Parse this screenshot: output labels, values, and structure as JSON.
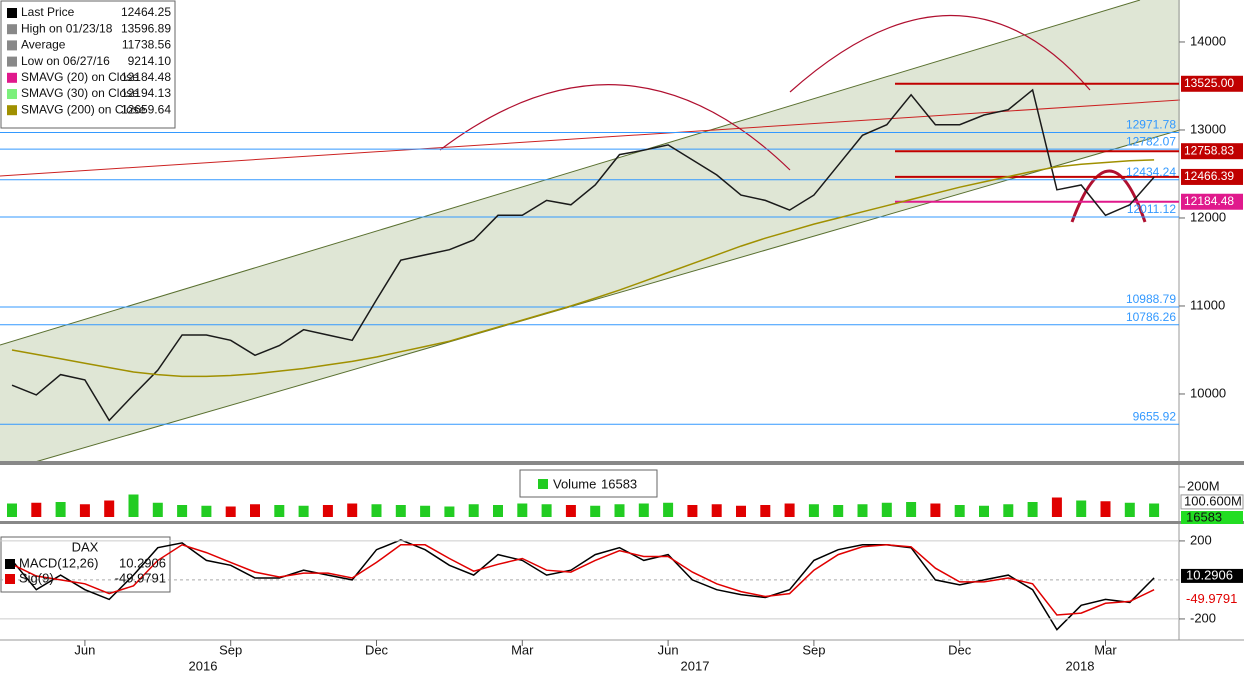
{
  "chart_data": [
    {
      "type": "line",
      "categories": [
        null,
        null,
        null,
        "Jun",
        null,
        null,
        null,
        null,
        null,
        "Sep",
        null,
        null,
        null,
        null,
        null,
        "Dec",
        null,
        null,
        null,
        null,
        null,
        "Mar",
        null,
        null,
        null,
        null,
        null,
        "Jun",
        null,
        null,
        null,
        null,
        null,
        "Sep",
        null,
        null,
        null,
        null,
        null,
        "Dec",
        null,
        null,
        null,
        null,
        null,
        "Mar",
        null,
        null
      ],
      "years": [
        "2016",
        "2017",
        "2018"
      ],
      "ylim": [
        9227,
        14477
      ],
      "yticks": [
        10000,
        11000,
        12000,
        13000,
        14000
      ],
      "legend": [
        {
          "name": "Last Price",
          "value": 12464.25,
          "color": "#000000"
        },
        {
          "name": "High on 01/23/18",
          "value": 13596.89,
          "color": "#888888"
        },
        {
          "name": "Average",
          "value": 11738.56,
          "color": "#888888"
        },
        {
          "name": "Low on 06/27/16",
          "value": 9214.1,
          "value_label": "9214.10",
          "color": "#888888"
        },
        {
          "name": "SMAVG (20) on Close",
          "value": 12184.48,
          "color": "#e0198c"
        },
        {
          "name": "SMAVG (30) on Close",
          "value": 12194.13,
          "color": "#7cf07c"
        },
        {
          "name": "SMAVG (200) on Close",
          "value": 12659.64,
          "color": "#a09000"
        }
      ],
      "series": [
        {
          "color": "#1a1a1a",
          "values": [
            10100,
            9990,
            10220,
            10160,
            9700,
            9990,
            10270,
            10670,
            10670,
            10610,
            10440,
            10550,
            10730,
            10670,
            10610,
            11070,
            11520,
            11580,
            11640,
            11750,
            12030,
            12030,
            12200,
            12150,
            12375,
            12720,
            12770,
            12830,
            12660,
            12490,
            12260,
            12200,
            12090,
            12260,
            12600,
            12940,
            13060,
            13400,
            13060,
            13060,
            13170,
            13230,
            13455,
            12320,
            12375,
            12030,
            12150,
            12464.25
          ]
        },
        {
          "color": "#a09000",
          "values": [
            10500,
            10450,
            10400,
            10350,
            10300,
            10250,
            10220,
            10200,
            10200,
            10210,
            10230,
            10260,
            10290,
            10330,
            10370,
            10420,
            10480,
            10540,
            10600,
            10680,
            10760,
            10840,
            10920,
            11000,
            11090,
            11180,
            11280,
            11380,
            11480,
            11580,
            11680,
            11770,
            11850,
            11930,
            12000,
            12070,
            12140,
            12210,
            12280,
            12350,
            12410,
            12470,
            12530,
            12580,
            12610,
            12630,
            12650,
            12660
          ]
        }
      ],
      "levels": [
        {
          "value": 13525,
          "label": "13525.00",
          "color": "#c00000",
          "box": true
        },
        {
          "value": 12971.78,
          "color": "#3399ff"
        },
        {
          "value": 12782.07,
          "color": "#3399ff"
        },
        {
          "value": 12758.83,
          "color": "#c00000",
          "box": true
        },
        {
          "value": 12466.39,
          "color": "#c00000",
          "box": true
        },
        {
          "value": 12434.24,
          "color": "#3399ff"
        },
        {
          "value": 12184.48,
          "color": "#e0198c",
          "box": true
        },
        {
          "value": 12011.12,
          "color": "#3399ff"
        },
        {
          "value": 10988.79,
          "color": "#3399ff"
        },
        {
          "value": 10786.26,
          "color": "#3399ff"
        },
        {
          "value": 9655.92,
          "color": "#3399ff"
        }
      ]
    },
    {
      "type": "bar",
      "legend": {
        "name": "Volume",
        "value": 16583
      },
      "up_color": "#22cc22",
      "down_color": "#e00000",
      "ylim": [
        0,
        260000000
      ],
      "yticks": [
        {
          "value": 200000000,
          "label": "200M"
        }
      ],
      "marker": {
        "value": 100600000,
        "label": "100.600M"
      },
      "values": [
        90000000,
        95000000,
        100000000,
        85000000,
        110000000,
        150000000,
        95000000,
        80000000,
        75000000,
        70000000,
        85000000,
        80000000,
        75000000,
        80000000,
        90000000,
        85000000,
        80000000,
        75000000,
        70000000,
        85000000,
        80000000,
        90000000,
        85000000,
        80000000,
        75000000,
        85000000,
        90000000,
        95000000,
        80000000,
        85000000,
        75000000,
        80000000,
        90000000,
        85000000,
        80000000,
        85000000,
        95000000,
        100000000,
        90000000,
        80000000,
        75000000,
        85000000,
        100000000,
        130000000,
        110000000,
        105000000,
        95000000,
        90000000
      ]
    },
    {
      "type": "line",
      "title": "DAX",
      "ylim": [
        -308,
        256
      ],
      "yticks": [
        200,
        -200
      ],
      "series": [
        {
          "name": "MACD(12,26)",
          "color": "#000000",
          "values": [
            100,
            -50,
            25,
            -50,
            -100,
            25,
            165,
            190,
            100,
            75,
            10,
            10,
            50,
            25,
            0,
            155,
            205,
            155,
            75,
            25,
            130,
            100,
            25,
            50,
            130,
            165,
            100,
            130,
            0,
            -50,
            -75,
            -90,
            -50,
            100,
            155,
            180,
            180,
            165,
            0,
            -25,
            0,
            25,
            -50,
            -255,
            -130,
            -100,
            -115,
            10.2906
          ]
        },
        {
          "name": "Sig(9)",
          "color": "#e00000",
          "values": [
            80,
            20,
            0,
            -20,
            -70,
            -30,
            100,
            180,
            140,
            90,
            40,
            15,
            35,
            35,
            10,
            90,
            180,
            180,
            110,
            45,
            80,
            110,
            50,
            40,
            100,
            150,
            120,
            120,
            40,
            -20,
            -60,
            -85,
            -70,
            50,
            130,
            170,
            180,
            170,
            60,
            -10,
            -10,
            10,
            -20,
            -180,
            -170,
            -120,
            -110,
            -49.9791
          ]
        }
      ]
    }
  ]
}
